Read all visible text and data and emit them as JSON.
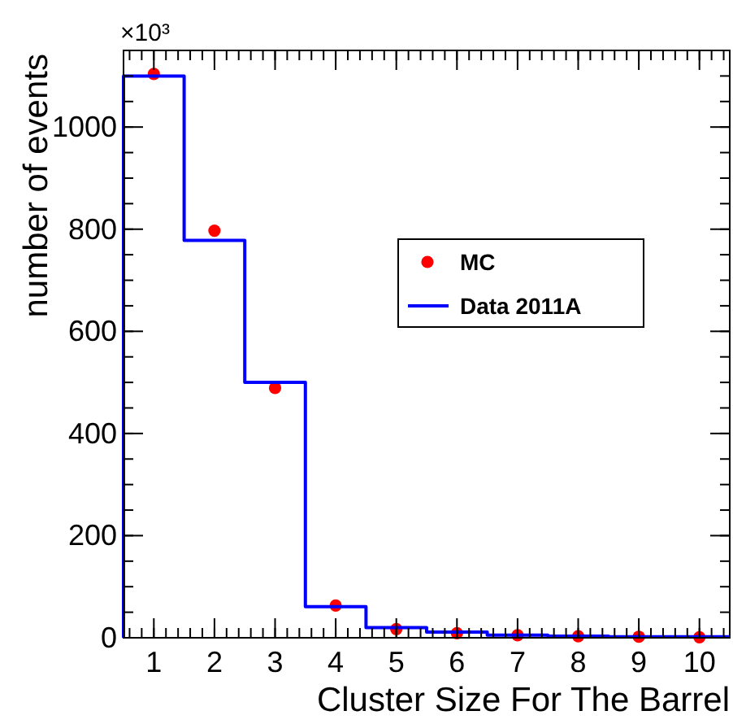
{
  "chart_data": {
    "type": "histogram",
    "xlabel": "Cluster Size For The Barrel",
    "ylabel": "number of events",
    "annotations": [
      "×10³"
    ],
    "bins": [
      0.5,
      1.5,
      2.5,
      3.5,
      4.5,
      5.5,
      6.5,
      7.5,
      8.5,
      9.5,
      10.5
    ],
    "xlim": [
      0.5,
      10.5
    ],
    "xticks": [
      1,
      2,
      3,
      4,
      5,
      6,
      7,
      8,
      9,
      10
    ],
    "ylim": [
      0,
      1150
    ],
    "yticks": [
      0,
      200,
      400,
      600,
      800,
      1000
    ],
    "legend": "right",
    "marker": "circle",
    "series": [
      {
        "name": "MC",
        "type": "scatter",
        "color": "#ff0000",
        "x": [
          1,
          2,
          3,
          4,
          5,
          6,
          7,
          8,
          9,
          10
        ],
        "values": [
          1104,
          797,
          489,
          63,
          17,
          9,
          5,
          3,
          2,
          1
        ]
      },
      {
        "name": "Data 2011A",
        "color": "#0000ff",
        "values": [
          1100,
          778,
          500,
          61,
          20,
          11,
          5,
          3,
          2,
          2
        ]
      }
    ]
  }
}
